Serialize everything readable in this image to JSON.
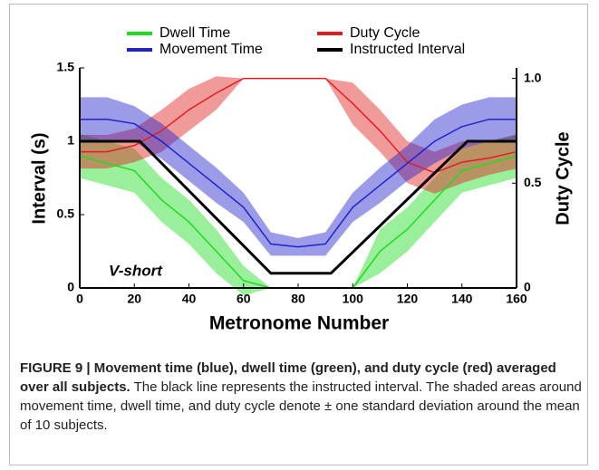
{
  "chart_data": {
    "type": "line",
    "x": [
      0,
      10,
      20,
      30,
      40,
      50,
      60,
      70,
      80,
      90,
      100,
      110,
      120,
      130,
      140,
      150,
      160
    ],
    "xlabel": "Metronome Number",
    "ylabel": "Interval (s)",
    "y2label": "Duty Cycle",
    "annotation": "V-short",
    "xlim": [
      0,
      160
    ],
    "xticks": [
      0,
      20,
      40,
      60,
      80,
      100,
      120,
      140,
      160
    ],
    "ylim": [
      0,
      1.5
    ],
    "yticks": [
      0,
      0.5,
      1,
      1.5
    ],
    "y2lim": [
      0,
      1.05
    ],
    "y2ticks": [
      0,
      0.5,
      {
        "value": 1,
        "label": "1.0"
      }
    ],
    "series": [
      {
        "name": "Dwell Time",
        "color": "#1fdc1f",
        "values": [
          0.9,
          0.85,
          0.8,
          0.6,
          0.45,
          0.25,
          0.05,
          0,
          0,
          0,
          0,
          0.25,
          0.4,
          0.6,
          0.8,
          0.85,
          0.9
        ],
        "std": [
          0.15,
          0.15,
          0.15,
          0.15,
          0.15,
          0.15,
          0.1,
          0,
          0,
          0,
          0,
          0.15,
          0.15,
          0.15,
          0.15,
          0.15,
          0.15
        ]
      },
      {
        "name": "Duty Cycle",
        "color": "#e02020",
        "axis": "y2",
        "values": [
          0.65,
          0.65,
          0.68,
          0.75,
          0.85,
          0.93,
          1,
          1,
          1,
          1,
          0.88,
          0.75,
          0.6,
          0.55,
          0.6,
          0.62,
          0.65
        ],
        "std": [
          0.08,
          0.08,
          0.08,
          0.1,
          0.1,
          0.08,
          0,
          0,
          0,
          0,
          0.1,
          0.1,
          0.1,
          0.1,
          0.1,
          0.08,
          0.08
        ]
      },
      {
        "name": "Movement Time",
        "color": "#2222cc",
        "values": [
          1.15,
          1.15,
          1.12,
          1,
          0.85,
          0.7,
          0.55,
          0.3,
          0.28,
          0.3,
          0.55,
          0.7,
          0.85,
          1,
          1.1,
          1.15,
          1.15
        ],
        "std": [
          0.15,
          0.15,
          0.12,
          0.12,
          0.12,
          0.12,
          0.1,
          0.08,
          0.06,
          0.08,
          0.1,
          0.12,
          0.12,
          0.15,
          0.15,
          0.15,
          0.15
        ]
      },
      {
        "name": "Instructed Interval",
        "color": "#000000",
        "x": [
          0,
          22,
          70,
          92,
          142,
          160
        ],
        "values": [
          1,
          1,
          0.1,
          0.1,
          1,
          1
        ]
      }
    ]
  },
  "caption": {
    "bold": "FIGURE 9 | Movement time (blue), dwell time (green), and duty cycle (red) averaged over all subjects.",
    "text": "The black line represents the instructed interval. The shaded areas around movement time, dwell time, and duty cycle denote ± one standard deviation around the mean of 10 subjects."
  }
}
